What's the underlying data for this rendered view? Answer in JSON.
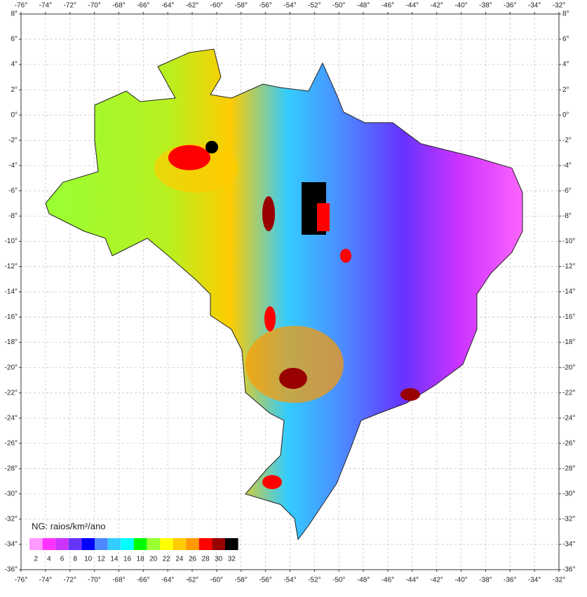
{
  "map": {
    "xticks": [
      {
        "value": -76,
        "label": "-76°"
      },
      {
        "value": -74,
        "label": "-74°"
      },
      {
        "value": -72,
        "label": "-72°"
      },
      {
        "value": -70,
        "label": "-70°"
      },
      {
        "value": -68,
        "label": "-68°"
      },
      {
        "value": -66,
        "label": "-66°"
      },
      {
        "value": -64,
        "label": "-64°"
      },
      {
        "value": -62,
        "label": "-62°"
      },
      {
        "value": -60,
        "label": "-60°"
      },
      {
        "value": -58,
        "label": "-58°"
      },
      {
        "value": -56,
        "label": "-56°"
      },
      {
        "value": -54,
        "label": "-54°"
      },
      {
        "value": -52,
        "label": "-52°"
      },
      {
        "value": -50,
        "label": "-50°"
      },
      {
        "value": -48,
        "label": "-48°"
      },
      {
        "value": -46,
        "label": "-46°"
      },
      {
        "value": -44,
        "label": "-44°"
      },
      {
        "value": -42,
        "label": "-42°"
      },
      {
        "value": -40,
        "label": "-40°"
      },
      {
        "value": -38,
        "label": "-38°"
      },
      {
        "value": -36,
        "label": "-36°"
      },
      {
        "value": -34,
        "label": "-34°"
      },
      {
        "value": -32,
        "label": "-32°"
      }
    ],
    "yticks": [
      {
        "value": 8,
        "label": "8°"
      },
      {
        "value": 6,
        "label": "6°"
      },
      {
        "value": 4,
        "label": "4°"
      },
      {
        "value": 2,
        "label": "2°"
      },
      {
        "value": 0,
        "label": "0°"
      },
      {
        "value": -2,
        "label": "-2°"
      },
      {
        "value": -4,
        "label": "-4°"
      },
      {
        "value": -6,
        "label": "-6°"
      },
      {
        "value": -8,
        "label": "-8°"
      },
      {
        "value": -10,
        "label": "-10°"
      },
      {
        "value": -12,
        "label": "-12°"
      },
      {
        "value": -14,
        "label": "-14°"
      },
      {
        "value": -16,
        "label": "-16°"
      },
      {
        "value": -18,
        "label": "-18°"
      },
      {
        "value": -20,
        "label": "-20°"
      },
      {
        "value": -22,
        "label": "-22°"
      },
      {
        "value": -24,
        "label": "-24°"
      },
      {
        "value": -26,
        "label": "-26°"
      },
      {
        "value": -28,
        "label": "-28°"
      },
      {
        "value": -30,
        "label": "-30°"
      },
      {
        "value": -32,
        "label": "-32°"
      },
      {
        "value": -34,
        "label": "-34°"
      },
      {
        "value": -36,
        "label": "-36°"
      }
    ],
    "xlim": [
      -76,
      -32
    ],
    "ylim": [
      8,
      -36
    ],
    "grid": true,
    "legend": {
      "title": "NG: raios/km²/ano",
      "values": [
        2,
        4,
        6,
        8,
        10,
        12,
        14,
        16,
        18,
        20,
        22,
        24,
        26,
        28,
        30,
        32
      ],
      "colors": [
        "#ff99ff",
        "#ff33ff",
        "#cc33ff",
        "#6633ff",
        "#0000ff",
        "#4d88ff",
        "#33ccff",
        "#00ffff",
        "#00ff00",
        "#99ff33",
        "#ffff00",
        "#ffcc00",
        "#ff9900",
        "#ff0000",
        "#990000",
        "#000000"
      ]
    }
  }
}
